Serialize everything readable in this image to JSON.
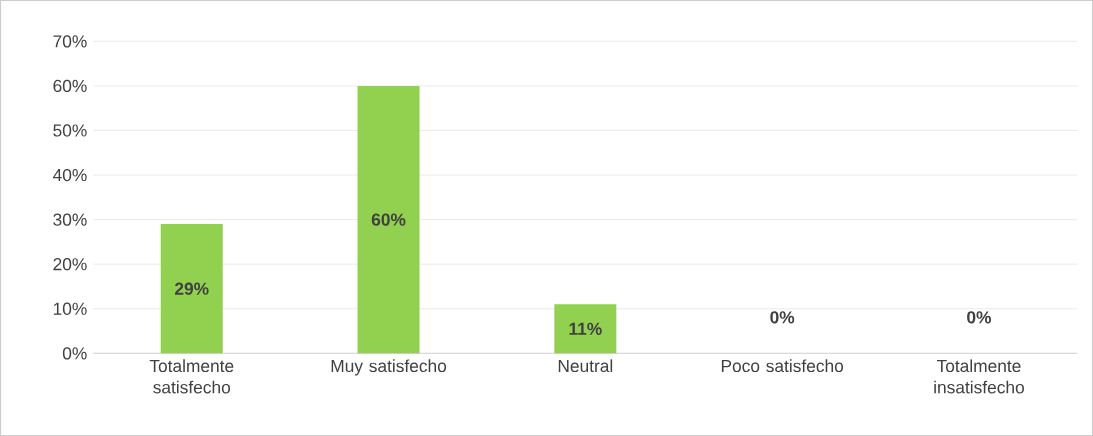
{
  "chart_data": {
    "type": "bar",
    "categories": [
      "Totalmente satisfecho",
      "Muy satisfecho",
      "Neutral",
      "Poco satisfecho",
      "Totalmente insatisfecho"
    ],
    "values": [
      29,
      60,
      11,
      0,
      0
    ],
    "value_labels": [
      "29%",
      "60%",
      "11%",
      "0%",
      "0%"
    ],
    "color": "#92d050",
    "ylim": [
      0,
      70
    ],
    "yticks": [
      {
        "value": 0,
        "label": "0%"
      },
      {
        "value": 10,
        "label": "10%"
      },
      {
        "value": 20,
        "label": "20%"
      },
      {
        "value": 30,
        "label": "30%"
      },
      {
        "value": 40,
        "label": "40%"
      },
      {
        "value": 50,
        "label": "50%"
      },
      {
        "value": 60,
        "label": "60%"
      },
      {
        "value": 70,
        "label": "70%"
      }
    ],
    "grid": "y"
  }
}
